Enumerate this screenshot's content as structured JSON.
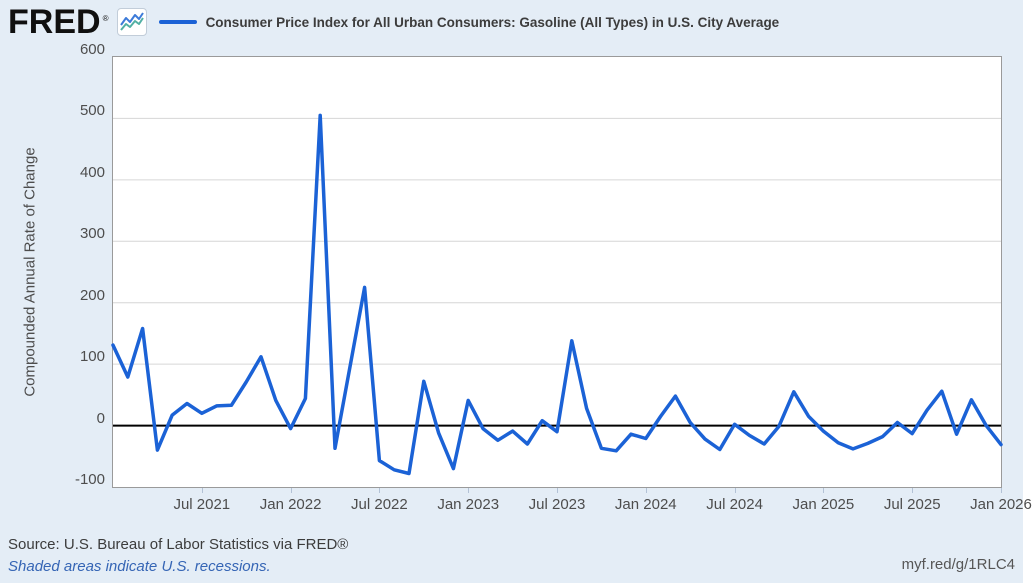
{
  "header": {
    "logo_text": "FRED",
    "registered_mark": "®",
    "series_title": "Consumer Price Index for All Urban Consumers: Gasoline (All Types) in U.S. City Average"
  },
  "footer": {
    "source": "Source: U.S. Bureau of Labor Statistics via FRED®",
    "recession_note": "Shaded areas indicate U.S. recessions.",
    "short_url": "myf.red/g/1RLC4"
  },
  "colors": {
    "page_bg": "#e4edf6",
    "plot_bg": "#ffffff",
    "series_line": "#1b62d6",
    "gridline": "#d6d6d6",
    "plot_border": "#9a9a9a",
    "zero_line": "#000000",
    "axis_label": "#4d4d4d",
    "link_blue": "#3565b5",
    "icon_line_blue": "#3d7bd9",
    "icon_line_teal": "#52b0a4"
  },
  "chart_data": {
    "type": "line",
    "title": "Consumer Price Index for All Urban Consumers: Gasoline (All Types) in U.S. City Average",
    "xlabel": "",
    "ylabel": "Compounded Annual Rate of Change",
    "ylim": [
      -100,
      600
    ],
    "y_ticks": [
      600,
      500,
      400,
      300,
      200,
      100,
      0,
      -100
    ],
    "grid": "horizontal-only",
    "zero_line": true,
    "legend_position": "top",
    "x_unit": "monthly",
    "x_start_month": "Jan 2021",
    "x_end_month": "Jan 2026",
    "x_tick_labels": [
      "Jul 2021",
      "Jan 2022",
      "Jul 2022",
      "Jan 2023",
      "Jul 2023",
      "Jan 2024",
      "Jul 2024",
      "Jan 2025",
      "Jul 2025",
      "Jan 2026"
    ],
    "x_tick_month_indices": [
      6,
      12,
      18,
      24,
      30,
      36,
      42,
      48,
      54,
      60
    ],
    "series": [
      {
        "name": "Consumer Price Index for All Urban Consumers: Gasoline (All Types) in U.S. City Average",
        "color": "#1b62d6",
        "values": [
          131,
          79,
          158,
          -40,
          17,
          36,
          20,
          32,
          33,
          71,
          112,
          41,
          -5,
          44,
          505,
          -37,
          94,
          225,
          -57,
          -72,
          -78,
          72,
          -12,
          -70,
          41,
          -5,
          -24,
          -9,
          -30,
          8,
          -10,
          138,
          28,
          -37,
          -41,
          -14,
          -21,
          15,
          48,
          5,
          -22,
          -39,
          2,
          -16,
          -30,
          -1,
          55,
          15,
          -9,
          -28,
          -38,
          -29,
          -18,
          5,
          -13,
          25,
          56,
          -14,
          42,
          0,
          -31
        ]
      }
    ]
  }
}
